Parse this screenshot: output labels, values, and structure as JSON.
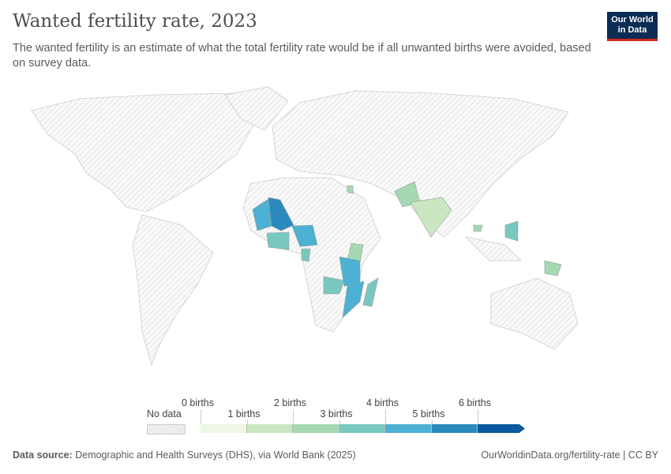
{
  "header": {
    "title": "Wanted fertility rate, 2023",
    "subtitle": "The wanted fertility is an estimate of what the total fertility rate would be if all unwanted births were avoided, based on survey data.",
    "logo": "Our World in Data"
  },
  "legend": {
    "no_data": "No data",
    "labels": [
      "0 births",
      "1 births",
      "2 births",
      "3 births",
      "4 births",
      "5 births",
      "6 births"
    ],
    "colors": [
      "#eef7e4",
      "#c9e8c1",
      "#a4d9b2",
      "#78c8c0",
      "#4cb1d3",
      "#2a8abe",
      "#0b5a9f"
    ]
  },
  "map": {
    "countries": [
      {
        "name": "Mali",
        "value": 5.5
      },
      {
        "name": "Mauritania/Senegal",
        "value": 4.5
      },
      {
        "name": "Nigeria",
        "value": 4.7
      },
      {
        "name": "Cote d'Ivoire/Ghana",
        "value": 3.7
      },
      {
        "name": "Kenya",
        "value": 2.8
      },
      {
        "name": "Tanzania",
        "value": 4.6
      },
      {
        "name": "Mozambique",
        "value": 4.6
      },
      {
        "name": "Zambia",
        "value": 3.7
      },
      {
        "name": "Madagascar",
        "value": 3.7
      },
      {
        "name": "Pakistan",
        "value": 2.6
      },
      {
        "name": "India",
        "value": 1.9
      },
      {
        "name": "Philippines",
        "value": 3.0
      },
      {
        "name": "Papua New Guinea",
        "value": 2.7
      },
      {
        "name": "Jordan",
        "value": 2.3
      },
      {
        "name": "Cambodia",
        "value": 2.6
      },
      {
        "name": "Gabon",
        "value": 3.7
      }
    ]
  },
  "footer": {
    "source_label": "Data source:",
    "source": "Demographic and Health Surveys (DHS), via World Bank (2025)",
    "right": "OurWorldinData.org/fertility-rate | CC BY"
  }
}
